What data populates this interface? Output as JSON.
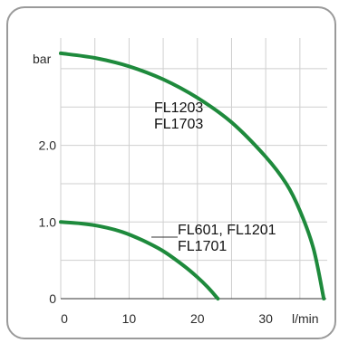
{
  "chart_data": {
    "type": "line",
    "xlabel": "l/min",
    "ylabel": "bar",
    "xlim": [
      0,
      39
    ],
    "ylim": [
      0,
      3.4
    ],
    "x_ticks": [
      "0",
      "10",
      "20",
      "30"
    ],
    "y_ticks": [
      "0",
      "1.0",
      "2.0"
    ],
    "grid": true,
    "colors": {
      "curve": "#1e8a3c",
      "grid": "#cfcfcf",
      "axis": "#333333"
    },
    "series": [
      {
        "labels": [
          "FL1203",
          "FL1703"
        ],
        "x": [
          0,
          5,
          10,
          15,
          20,
          25,
          30,
          33,
          35,
          37,
          38.5
        ],
        "y": [
          3.2,
          3.14,
          3.03,
          2.86,
          2.62,
          2.3,
          1.85,
          1.5,
          1.15,
          0.65,
          0.0
        ]
      },
      {
        "labels": [
          "FL601, FL1201",
          "FL1701"
        ],
        "x": [
          0,
          3,
          6,
          9,
          12,
          15,
          18,
          20,
          21.5,
          23
        ],
        "y": [
          1.0,
          0.98,
          0.94,
          0.87,
          0.76,
          0.62,
          0.43,
          0.28,
          0.15,
          0.0
        ]
      }
    ]
  }
}
